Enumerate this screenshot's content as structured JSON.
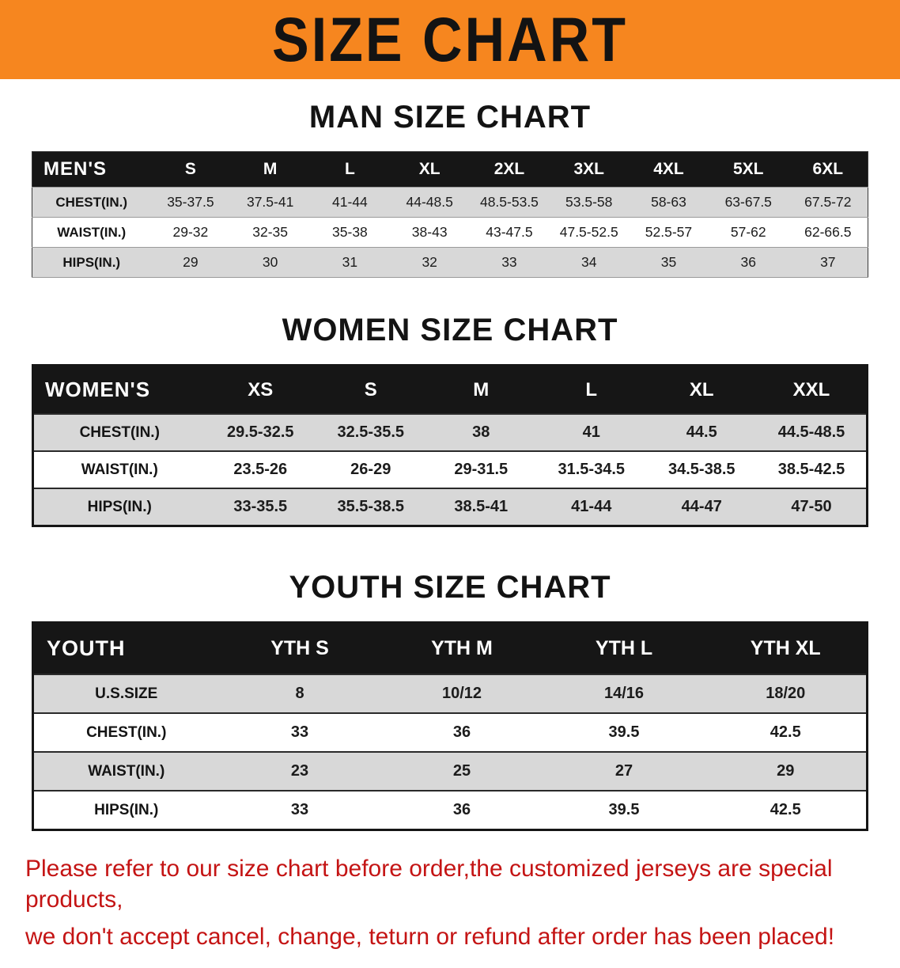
{
  "banner": {
    "title": "SIZE CHART"
  },
  "colors": {
    "banner_orange": "#F6861F",
    "header_black": "#161616",
    "stripe_gray": "#D8D8D8",
    "disclaimer_red": "#C41414"
  },
  "sections": [
    {
      "id": "men",
      "heading": "MAN SIZE CHART",
      "table": {
        "header": [
          "MEN'S",
          "S",
          "M",
          "L",
          "XL",
          "2XL",
          "3XL",
          "4XL",
          "5XL",
          "6XL"
        ],
        "rows": [
          [
            "CHEST(IN.)",
            "35-37.5",
            "37.5-41",
            "41-44",
            "44-48.5",
            "48.5-53.5",
            "53.5-58",
            "58-63",
            "63-67.5",
            "67.5-72"
          ],
          [
            "WAIST(IN.)",
            "29-32",
            "32-35",
            "35-38",
            "38-43",
            "43-47.5",
            "47.5-52.5",
            "52.5-57",
            "57-62",
            "62-66.5"
          ],
          [
            "HIPS(IN.)",
            "29",
            "30",
            "31",
            "32",
            "33",
            "34",
            "35",
            "36",
            "37"
          ]
        ]
      }
    },
    {
      "id": "women",
      "heading": "WOMEN SIZE CHART",
      "table": {
        "header": [
          "WOMEN'S",
          "XS",
          "S",
          "M",
          "L",
          "XL",
          "XXL"
        ],
        "rows": [
          [
            "CHEST(IN.)",
            "29.5-32.5",
            "32.5-35.5",
            "38",
            "41",
            "44.5",
            "44.5-48.5"
          ],
          [
            "WAIST(IN.)",
            "23.5-26",
            "26-29",
            "29-31.5",
            "31.5-34.5",
            "34.5-38.5",
            "38.5-42.5"
          ],
          [
            "HIPS(IN.)",
            "33-35.5",
            "35.5-38.5",
            "38.5-41",
            "41-44",
            "44-47",
            "47-50"
          ]
        ]
      }
    },
    {
      "id": "youth",
      "heading": "YOUTH SIZE CHART",
      "table": {
        "header": [
          "YOUTH",
          "YTH S",
          "YTH M",
          "YTH L",
          "YTH XL"
        ],
        "rows": [
          [
            "U.S.SIZE",
            "8",
            "10/12",
            "14/16",
            "18/20"
          ],
          [
            "CHEST(IN.)",
            "33",
            "36",
            "39.5",
            "42.5"
          ],
          [
            "WAIST(IN.)",
            "23",
            "25",
            "27",
            "29"
          ],
          [
            "HIPS(IN.)",
            "33",
            "36",
            "39.5",
            "42.5"
          ]
        ]
      }
    }
  ],
  "disclaimer": {
    "lines": [
      "Please refer to our size chart before order,the customized jerseys are special products,",
      "we don't accept cancel, change, teturn or refund after order has been placed!"
    ]
  }
}
